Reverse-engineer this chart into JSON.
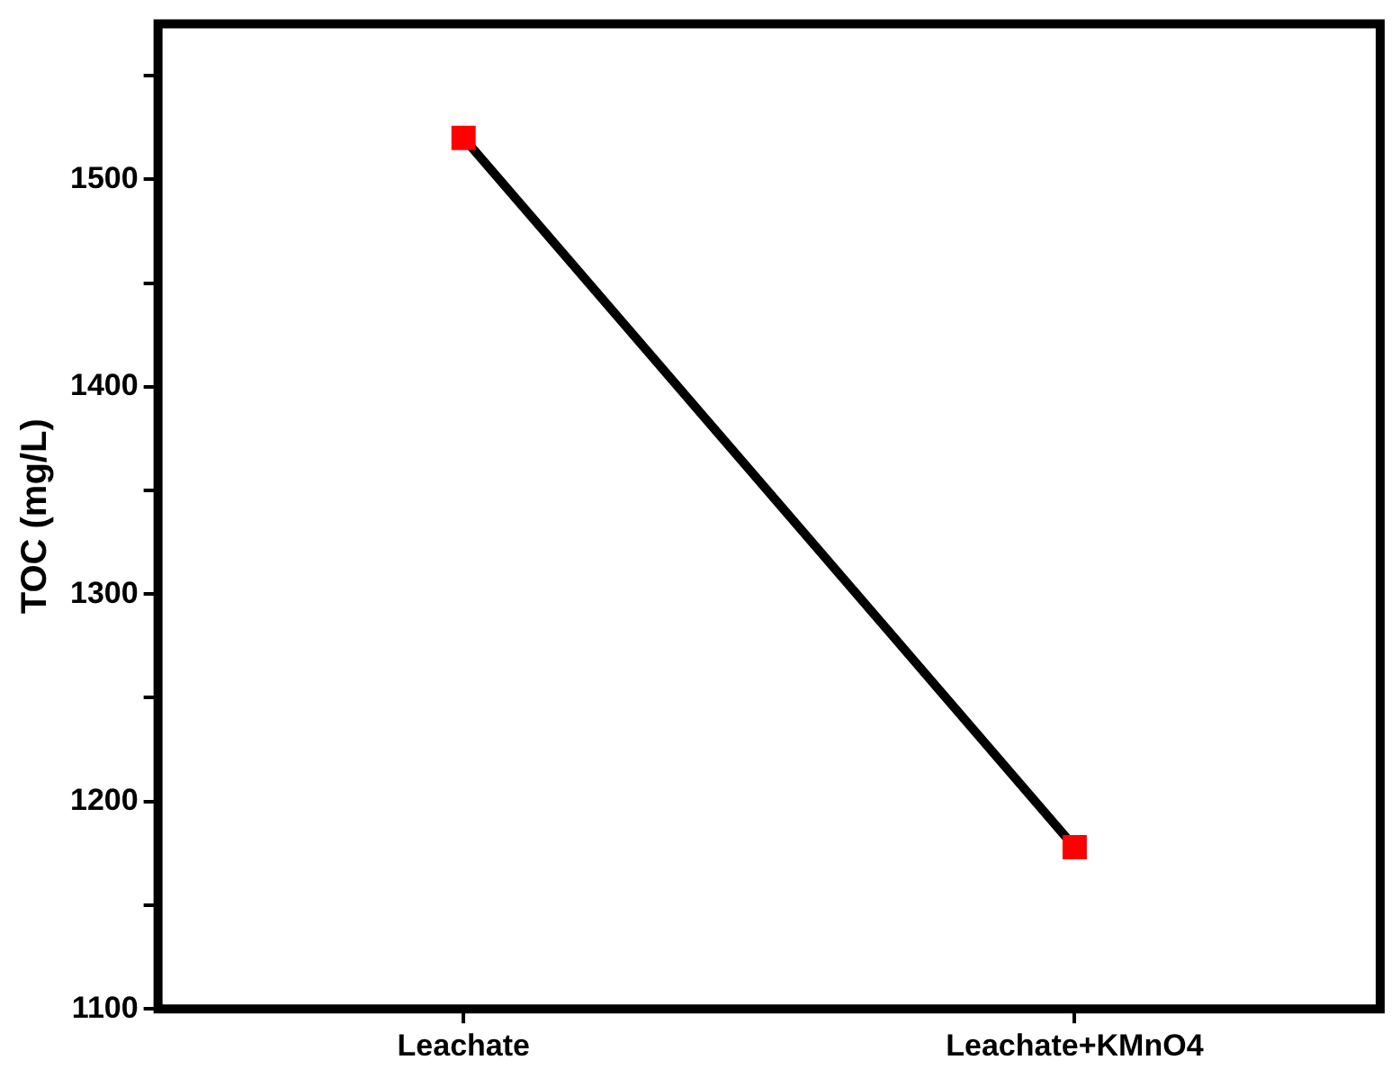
{
  "chart_data": {
    "type": "line",
    "ylabel": "TOC (mg/L)",
    "categories": [
      "Leachate",
      "Leachate+KMnO4"
    ],
    "series": [
      {
        "color": "#000000",
        "colors": [
          "#ff0000",
          "#ff0000"
        ],
        "values": [
          1520,
          1178
        ]
      }
    ],
    "ylim": [
      1100,
      1575
    ],
    "yticks": [
      1100,
      {
        "value": 1150,
        "label": null
      },
      1200,
      {
        "value": 1250,
        "label": null
      },
      1300,
      {
        "value": 1350,
        "label": null
      },
      1400,
      {
        "value": 1450,
        "label": null
      },
      1500,
      {
        "value": 1550,
        "label": null
      }
    ],
    "marker": "square",
    "line_style": "solid",
    "grid": false,
    "legend": false
  }
}
